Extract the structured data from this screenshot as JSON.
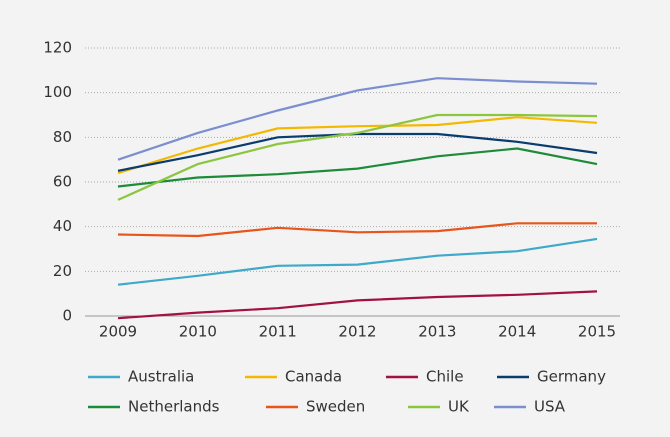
{
  "chart_data": {
    "type": "line",
    "categories": [
      "2009",
      "2010",
      "2011",
      "2012",
      "2013",
      "2014",
      "2015"
    ],
    "series": [
      {
        "name": "Australia",
        "color": "#3fa9c9",
        "values": [
          14,
          18,
          22.5,
          23,
          27,
          29,
          34.5
        ]
      },
      {
        "name": "Canada",
        "color": "#f5b800",
        "values": [
          64,
          75,
          84,
          85,
          85.5,
          89,
          86.5
        ]
      },
      {
        "name": "Chile",
        "color": "#a3123f",
        "values": [
          -1,
          1.5,
          3.5,
          7,
          8.5,
          9.5,
          11
        ]
      },
      {
        "name": "Germany",
        "color": "#0a3c6e",
        "values": [
          65,
          72,
          80,
          81.5,
          81.5,
          78,
          73
        ]
      },
      {
        "name": "Netherlands",
        "color": "#1e8b3a",
        "values": [
          58,
          62,
          63.5,
          66,
          71.5,
          75,
          68
        ]
      },
      {
        "name": "Sweden",
        "color": "#e8541c",
        "values": [
          36.5,
          35.8,
          39.5,
          37.5,
          38,
          41.5,
          41.5
        ]
      },
      {
        "name": "UK",
        "color": "#8cc63f",
        "values": [
          52,
          68,
          77,
          82,
          90,
          90,
          89.5
        ]
      },
      {
        "name": "USA",
        "color": "#7b8fd0",
        "values": [
          70,
          82,
          92,
          101,
          106.5,
          105,
          104
        ]
      }
    ],
    "ylim": [
      0,
      120
    ],
    "yticks": [
      0,
      20,
      40,
      60,
      80,
      100,
      120
    ],
    "grid": true,
    "legend": "bottom"
  }
}
